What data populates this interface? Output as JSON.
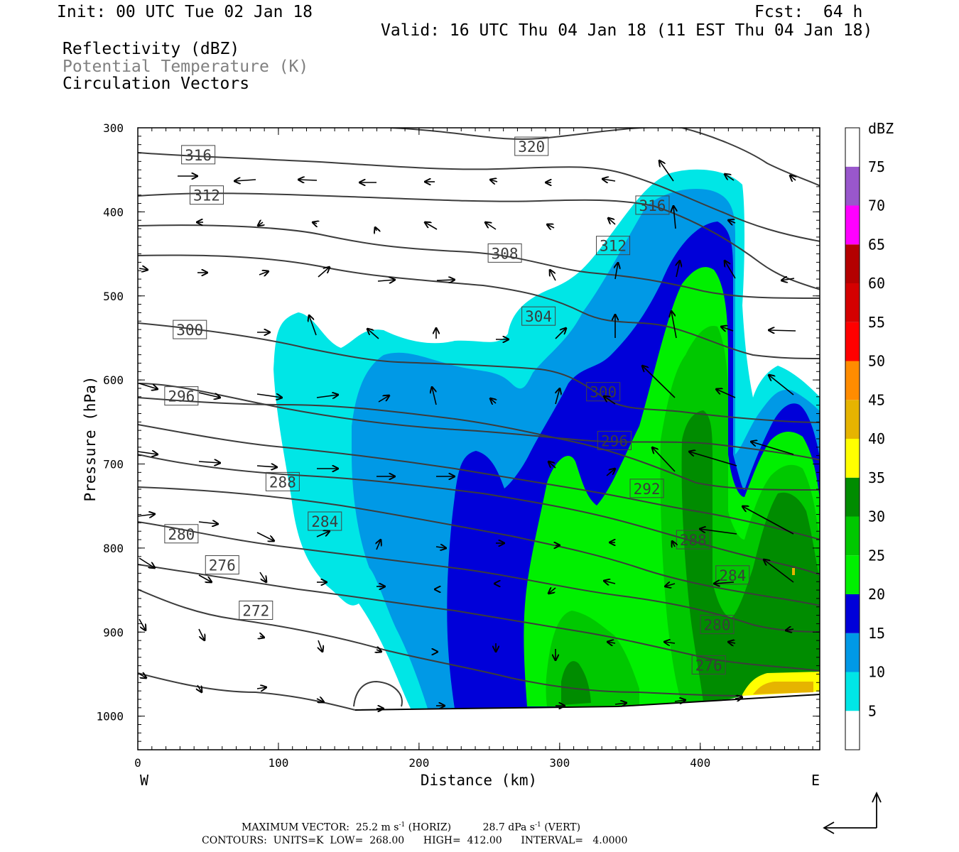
{
  "header": {
    "init": "Init: 00 UTC Tue 02 Jan 18",
    "fcst": "Fcst:  64 h",
    "valid": "Valid: 16 UTC Thu 04 Jan 18 (11 EST Thu 04 Jan 18)",
    "fields": [
      "Reflectivity (dBZ)",
      "Potential Temperature (K)",
      "Circulation Vectors"
    ]
  },
  "footer": {
    "max_vector_label": "MAXIMUM VECTOR:",
    "max_vector_horiz": "25.2 m s",
    "horiz_tag": "(HORIZ)",
    "max_vector_vert": "28.7 dPa s",
    "vert_tag": "(VERT)",
    "exp": "-1",
    "contours": "CONTOURS:  UNITS=K  LOW=  268.00      HIGH=  412.00      INTERVAL=   4.0000"
  },
  "colors": {
    "c5": "#00e6e6",
    "c10": "#0099e6",
    "c15": "#0000d9",
    "c20": "#00f000",
    "c25": "#00c800",
    "c30": "#008c00",
    "c35": "#ffff00",
    "c40": "#e6b400",
    "c45": "#ff8c00",
    "c50": "#ff0000",
    "c55": "#d40000",
    "c60": "#b40000",
    "c65": "#ff00ff",
    "c70": "#9957cc",
    "contour": "#3c3c3c"
  },
  "chart_data": {
    "type": "heatmap",
    "title": "Reflectivity (dBZ) / Potential Temperature (K) / Circulation Vectors",
    "xlabel": "Distance (km)",
    "ylabel": "Pressure (hPa)",
    "xlim": [
      0,
      485
    ],
    "ylim": [
      1040,
      300
    ],
    "x_ticks": [
      0,
      100,
      200,
      300,
      400
    ],
    "y_ticks": [
      300,
      400,
      500,
      600,
      700,
      800,
      900,
      1000
    ],
    "x_end_labels": {
      "left": "W",
      "right": "E"
    },
    "colorbar": {
      "unit": "dBZ",
      "levels": [
        5,
        10,
        15,
        20,
        25,
        30,
        35,
        40,
        45,
        50,
        55,
        60,
        65,
        70,
        75
      ]
    },
    "theta_labels": [
      {
        "value": "320",
        "x": 280,
        "p": 322
      },
      {
        "value": "316",
        "x": 43,
        "p": 332
      },
      {
        "value": "316",
        "x": 366,
        "p": 392
      },
      {
        "value": "312",
        "x": 49,
        "p": 380
      },
      {
        "value": "312",
        "x": 338,
        "p": 440
      },
      {
        "value": "308",
        "x": 261,
        "p": 449
      },
      {
        "value": "304",
        "x": 285,
        "p": 524
      },
      {
        "value": "300",
        "x": 37,
        "p": 540
      },
      {
        "value": "300",
        "x": 331,
        "p": 614
      },
      {
        "value": "296",
        "x": 31,
        "p": 619
      },
      {
        "value": "296",
        "x": 339,
        "p": 672
      },
      {
        "value": "292",
        "x": 362,
        "p": 729
      },
      {
        "value": "288",
        "x": 103,
        "p": 721
      },
      {
        "value": "288",
        "x": 395,
        "p": 790
      },
      {
        "value": "284",
        "x": 133,
        "p": 768
      },
      {
        "value": "284",
        "x": 423,
        "p": 832
      },
      {
        "value": "280",
        "x": 31,
        "p": 783
      },
      {
        "value": "280",
        "x": 412,
        "p": 891
      },
      {
        "value": "276",
        "x": 60,
        "p": 820
      },
      {
        "value": "276",
        "x": 406,
        "p": 939
      },
      {
        "value": "272",
        "x": 84,
        "p": 874
      }
    ]
  }
}
